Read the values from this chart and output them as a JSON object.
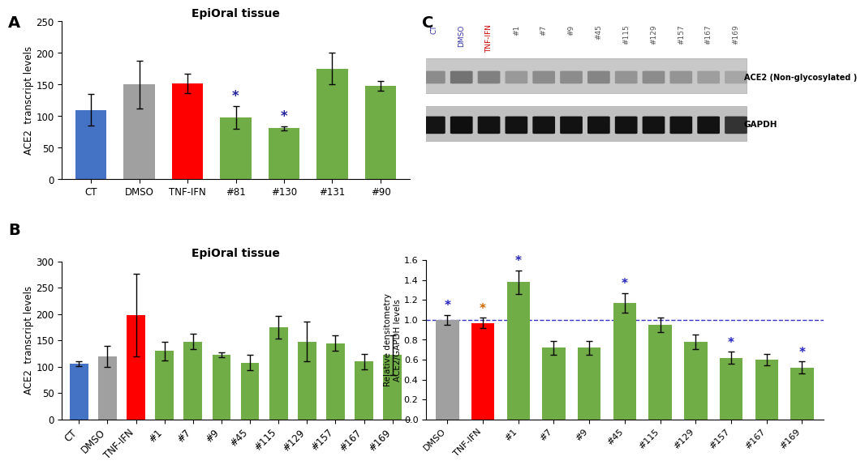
{
  "panel_A": {
    "title": "EpiOral tissue",
    "categories": [
      "CT",
      "DMSO",
      "TNF-IFN",
      "#81",
      "#130",
      "#131",
      "#90"
    ],
    "values": [
      110,
      150,
      152,
      98,
      81,
      175,
      148
    ],
    "errors": [
      25,
      38,
      15,
      18,
      3,
      25,
      8
    ],
    "colors": [
      "#4472c4",
      "#a0a0a0",
      "#ff0000",
      "#70ad47",
      "#70ad47",
      "#70ad47",
      "#70ad47"
    ],
    "sig": [
      false,
      false,
      false,
      true,
      true,
      false,
      false
    ],
    "ylabel": "ACE2  transcript levels",
    "ylim": [
      0,
      250
    ],
    "yticks": [
      0,
      50,
      100,
      150,
      200,
      250
    ]
  },
  "panel_B": {
    "title": "EpiOral tissue",
    "categories": [
      "CT",
      "DMSO",
      "TNF-IFN",
      "#1",
      "#7",
      "#9",
      "#45",
      "#115",
      "#129",
      "#157",
      "#167",
      "#169"
    ],
    "values": [
      106,
      120,
      198,
      130,
      148,
      123,
      108,
      175,
      148,
      145,
      110,
      122
    ],
    "errors": [
      5,
      20,
      78,
      18,
      15,
      5,
      15,
      22,
      38,
      15,
      15,
      38
    ],
    "colors": [
      "#4472c4",
      "#a0a0a0",
      "#ff0000",
      "#70ad47",
      "#70ad47",
      "#70ad47",
      "#70ad47",
      "#70ad47",
      "#70ad47",
      "#70ad47",
      "#70ad47",
      "#70ad47"
    ],
    "ylabel": "ACE2  transcript levels",
    "ylim": [
      0,
      300
    ],
    "yticks": [
      0,
      50,
      100,
      150,
      200,
      250,
      300
    ]
  },
  "panel_D": {
    "categories": [
      "DMSO",
      "TNF-IFN",
      "#1",
      "#7",
      "#9",
      "#45",
      "#115",
      "#129",
      "#157",
      "#167",
      "#169"
    ],
    "values": [
      1.0,
      0.97,
      1.38,
      0.72,
      0.72,
      1.17,
      0.95,
      0.78,
      0.62,
      0.6,
      0.52
    ],
    "errors": [
      0.05,
      0.05,
      0.12,
      0.07,
      0.07,
      0.1,
      0.07,
      0.07,
      0.06,
      0.06,
      0.06
    ],
    "colors": [
      "#a0a0a0",
      "#ff0000",
      "#70ad47",
      "#70ad47",
      "#70ad47",
      "#70ad47",
      "#70ad47",
      "#70ad47",
      "#70ad47",
      "#70ad47",
      "#70ad47"
    ],
    "sig_blue": [
      true,
      false,
      true,
      false,
      false,
      true,
      false,
      false,
      true,
      false,
      true
    ],
    "sig_orange": [
      false,
      true,
      false,
      false,
      false,
      false,
      false,
      false,
      false,
      false,
      false
    ],
    "ylabel": "Relative densitometry\nACE2/GAPDH levels",
    "ylim": [
      0,
      1.6
    ],
    "yticks": [
      0.0,
      0.2,
      0.4,
      0.6,
      0.8,
      1.0,
      1.2,
      1.4,
      1.6
    ],
    "dashed_line": 1.0
  },
  "panel_C_labels": [
    "CT",
    "DMSO",
    "TNF-IFN",
    "#1",
    "#7",
    "#9",
    "#45",
    "#115",
    "#129",
    "#157",
    "#167",
    "#169"
  ],
  "panel_C_label_colors": [
    "#3333aa",
    "#3333aa",
    "#cc0000",
    "#555555",
    "#555555",
    "#555555",
    "#555555",
    "#555555",
    "#555555",
    "#555555",
    "#555555",
    "#555555"
  ],
  "ace2_band_gray": [
    0.55,
    0.45,
    0.5,
    0.6,
    0.55,
    0.55,
    0.52,
    0.58,
    0.55,
    0.58,
    0.62,
    0.65
  ],
  "gapdh_band_gray": [
    0.08,
    0.06,
    0.07,
    0.07,
    0.07,
    0.07,
    0.07,
    0.07,
    0.07,
    0.07,
    0.07,
    0.2
  ]
}
